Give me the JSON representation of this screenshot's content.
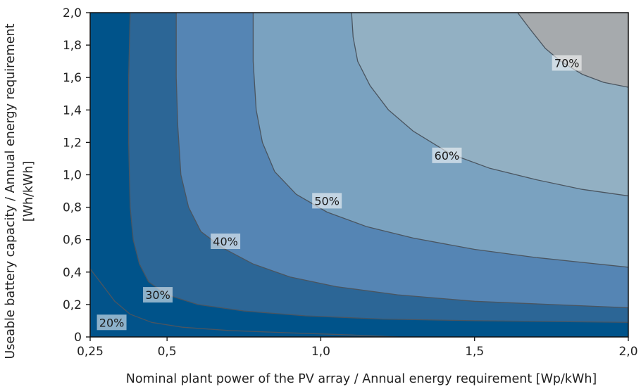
{
  "chart_data": {
    "type": "contour",
    "xlabel": "Nominal plant power of the PV array / Annual energy requirement [Wp/kWh]",
    "ylabel_line1": "Useable battery capacity / Annual energy requirement",
    "ylabel_line2": "[Wh/kWh]",
    "xlim": [
      0.25,
      2.0
    ],
    "ylim": [
      0,
      2.0
    ],
    "x_ticks": [
      {
        "value": 0.25,
        "label": "0,25"
      },
      {
        "value": 0.5,
        "label": "0,5"
      },
      {
        "value": 1.0,
        "label": "1,0"
      },
      {
        "value": 1.5,
        "label": "1,5"
      },
      {
        "value": 2.0,
        "label": "2,0"
      }
    ],
    "y_ticks": [
      {
        "value": 0,
        "label": "0"
      },
      {
        "value": 0.2,
        "label": "0,2"
      },
      {
        "value": 0.4,
        "label": "0,4"
      },
      {
        "value": 0.6,
        "label": "0,6"
      },
      {
        "value": 0.8,
        "label": "0,8"
      },
      {
        "value": 1.0,
        "label": "1,0"
      },
      {
        "value": 1.2,
        "label": "1,2"
      },
      {
        "value": 1.4,
        "label": "1,4"
      },
      {
        "value": 1.6,
        "label": "1,6"
      },
      {
        "value": 1.8,
        "label": "1,8"
      },
      {
        "value": 2.0,
        "label": "2,0"
      }
    ],
    "base_color": "#02538a",
    "levels": [
      {
        "label": "20%",
        "color": "#00538a",
        "label_at": [
          0.32,
          0.09
        ],
        "boundary": [
          [
            0.25,
            0.42
          ],
          [
            0.29,
            0.32
          ],
          [
            0.33,
            0.22
          ],
          [
            0.38,
            0.14
          ],
          [
            0.45,
            0.09
          ],
          [
            0.55,
            0.06
          ],
          [
            0.7,
            0.04
          ],
          [
            0.9,
            0.025
          ],
          [
            1.1,
            0.012
          ],
          [
            1.25,
            0.0
          ]
        ]
      },
      {
        "label": "30%",
        "color": "#2c6696",
        "label_at": [
          0.47,
          0.26
        ],
        "boundary": [
          [
            0.38,
            2.0
          ],
          [
            0.375,
            1.6
          ],
          [
            0.375,
            1.2
          ],
          [
            0.38,
            0.8
          ],
          [
            0.39,
            0.6
          ],
          [
            0.41,
            0.45
          ],
          [
            0.44,
            0.34
          ],
          [
            0.5,
            0.26
          ],
          [
            0.6,
            0.2
          ],
          [
            0.75,
            0.16
          ],
          [
            0.95,
            0.13
          ],
          [
            1.2,
            0.11
          ],
          [
            1.5,
            0.1
          ],
          [
            1.75,
            0.095
          ],
          [
            2.0,
            0.09
          ]
        ]
      },
      {
        "label": "40%",
        "color": "#5585b4",
        "label_at": [
          0.69,
          0.59
        ],
        "boundary": [
          [
            0.53,
            2.0
          ],
          [
            0.53,
            1.6
          ],
          [
            0.535,
            1.3
          ],
          [
            0.545,
            1.0
          ],
          [
            0.57,
            0.8
          ],
          [
            0.61,
            0.65
          ],
          [
            0.68,
            0.55
          ],
          [
            0.78,
            0.45
          ],
          [
            0.9,
            0.37
          ],
          [
            1.05,
            0.31
          ],
          [
            1.25,
            0.26
          ],
          [
            1.5,
            0.22
          ],
          [
            1.75,
            0.2
          ],
          [
            2.0,
            0.18
          ]
        ]
      },
      {
        "label": "50%",
        "color": "#7aa2c0",
        "label_at": [
          1.02,
          0.84
        ],
        "boundary": [
          [
            0.78,
            2.0
          ],
          [
            0.78,
            1.7
          ],
          [
            0.79,
            1.4
          ],
          [
            0.81,
            1.2
          ],
          [
            0.85,
            1.02
          ],
          [
            0.92,
            0.88
          ],
          [
            1.02,
            0.77
          ],
          [
            1.15,
            0.68
          ],
          [
            1.3,
            0.61
          ],
          [
            1.5,
            0.54
          ],
          [
            1.7,
            0.49
          ],
          [
            1.85,
            0.46
          ],
          [
            2.0,
            0.43
          ]
        ]
      },
      {
        "label": "60%",
        "color": "#92b0c3",
        "label_at": [
          1.41,
          1.12
        ],
        "boundary": [
          [
            1.1,
            2.0
          ],
          [
            1.105,
            1.85
          ],
          [
            1.12,
            1.7
          ],
          [
            1.16,
            1.55
          ],
          [
            1.22,
            1.4
          ],
          [
            1.3,
            1.27
          ],
          [
            1.42,
            1.13
          ],
          [
            1.55,
            1.04
          ],
          [
            1.7,
            0.97
          ],
          [
            1.85,
            0.91
          ],
          [
            2.0,
            0.87
          ]
        ]
      },
      {
        "label": "70%",
        "color": "#a6aaad",
        "label_at": [
          1.8,
          1.69
        ],
        "boundary": [
          [
            1.64,
            2.0
          ],
          [
            1.68,
            1.9
          ],
          [
            1.73,
            1.78
          ],
          [
            1.78,
            1.7
          ],
          [
            1.85,
            1.62
          ],
          [
            1.92,
            1.57
          ],
          [
            2.0,
            1.54
          ]
        ]
      }
    ]
  }
}
